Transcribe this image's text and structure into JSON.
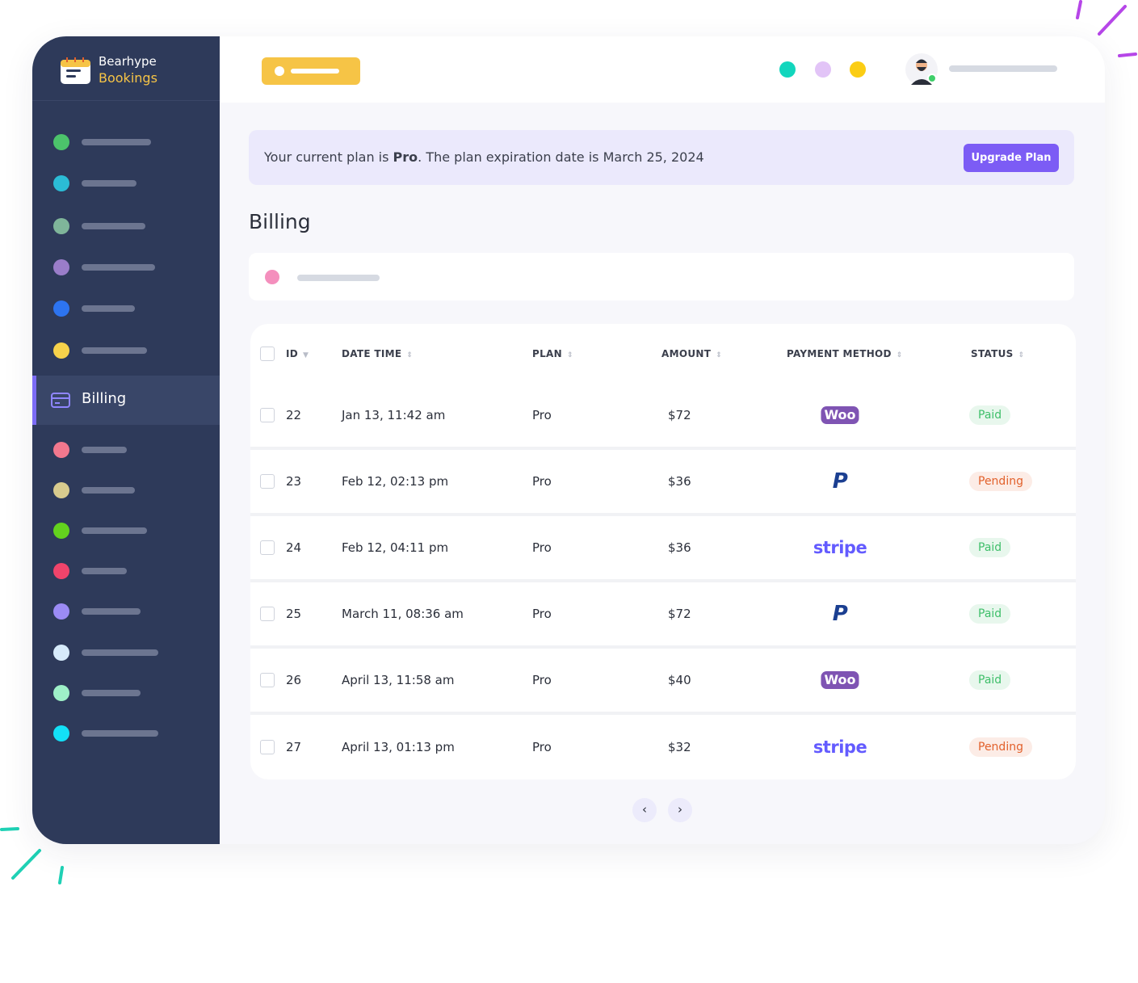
{
  "brand": {
    "name": "Bearhype",
    "product": "Bookings"
  },
  "sidebar": {
    "active": "Billing"
  },
  "plan_banner": {
    "before": "Your current plan is ",
    "plan": "Pro",
    "after": ". The plan expiration date is March 25, 2024",
    "button": "Upgrade Plan"
  },
  "page_title": "Billing",
  "table": {
    "columns": [
      "ID",
      "DATE TIME",
      "PLAN",
      "AMOUNT",
      "PAYMENT METHOD",
      "STATUS"
    ],
    "rows": [
      {
        "id": "22",
        "datetime": "Jan 13, 11:42 am",
        "plan": "Pro",
        "amount": "$72",
        "method": {
          "label": "Woo",
          "color": "#7f54b3",
          "badge": true
        },
        "status": {
          "label": "Paid",
          "color": "#3fbf6a"
        }
      },
      {
        "id": "23",
        "datetime": "Feb 12, 02:13 pm",
        "plan": "Pro",
        "amount": "$36",
        "method": {
          "label": "P",
          "color": "#1b3f91",
          "badge": false
        },
        "status": {
          "label": "Pending",
          "color": "#e2612c"
        }
      },
      {
        "id": "24",
        "datetime": "Feb 12, 04:11 pm",
        "plan": "Pro",
        "amount": "$36",
        "method": {
          "label": "stripe",
          "color": "#635bff",
          "badge": false
        },
        "status": {
          "label": "Paid",
          "color": "#3fbf6a"
        }
      },
      {
        "id": "25",
        "datetime": "March 11, 08:36 am",
        "plan": "Pro",
        "amount": "$72",
        "method": {
          "label": "P",
          "color": "#1b3f91",
          "badge": false
        },
        "status": {
          "label": "Paid",
          "color": "#3fbf6a"
        }
      },
      {
        "id": "26",
        "datetime": "April 13, 11:58 am",
        "plan": "Pro",
        "amount": "$40",
        "method": {
          "label": "Woo",
          "color": "#7f54b3",
          "badge": true
        },
        "status": {
          "label": "Paid",
          "color": "#3fbf6a"
        }
      },
      {
        "id": "27",
        "datetime": "April 13, 01:13 pm",
        "plan": "Pro",
        "amount": "$32",
        "method": {
          "label": "stripe",
          "color": "#635bff",
          "badge": false
        },
        "status": {
          "label": "Pending",
          "color": "#e2612c"
        }
      }
    ]
  }
}
